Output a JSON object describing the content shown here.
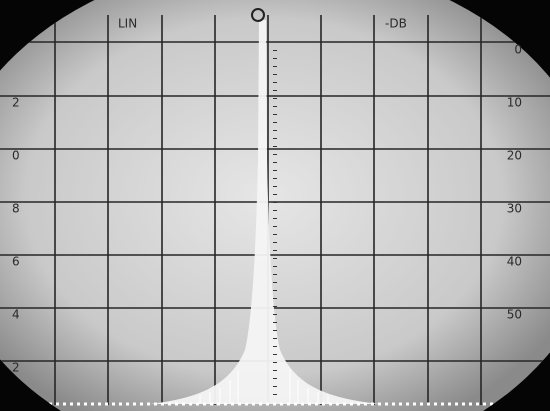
{
  "labels": {
    "mode": "LIN",
    "unit": "-DB"
  },
  "left_scale": [
    "2",
    "0",
    "8",
    "6",
    "4",
    "2"
  ],
  "right_scale": [
    "0",
    "10",
    "20",
    "30",
    "40",
    "50"
  ]
}
